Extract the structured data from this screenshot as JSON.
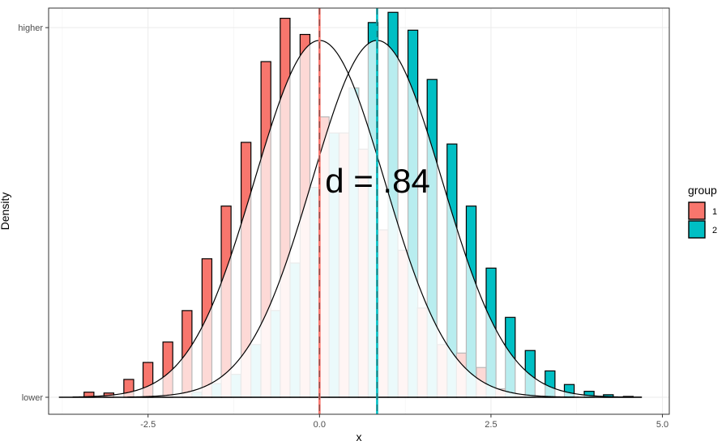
{
  "chart_data": {
    "type": "histogram",
    "xlabel": "x",
    "ylabel": "Density",
    "xlim": [
      -3.95,
      5.1
    ],
    "x_ticks": [
      -2.5,
      0.0,
      2.5,
      5.0
    ],
    "x_tick_labels": [
      "-2.5",
      "0.0",
      "2.5",
      "5.0"
    ],
    "y_tick_labels": [
      "higher",
      "lower"
    ],
    "y_tick_values": [
      0.435,
      0.0
    ],
    "ylim": [
      -0.02,
      0.458
    ],
    "grid": true,
    "legend": {
      "title": "group",
      "position": "right",
      "entries": [
        "1",
        "2"
      ]
    },
    "annotation": "d = .84",
    "colors": {
      "group_1": "#F8766D",
      "group_2": "#00BFC4",
      "group_1_light": "#FCD9D6",
      "group_2_light": "#BFEFF0",
      "overlap": "#C3817D"
    },
    "bin_width": 0.286,
    "series": [
      {
        "name": "1",
        "mean_line": 0.0,
        "bin_centers": [
          -3.29,
          -3.0,
          -2.71,
          -2.43,
          -2.14,
          -1.86,
          -1.57,
          -1.29,
          -1.0,
          -0.71,
          -0.43,
          -0.14,
          0.14,
          0.43,
          0.71,
          1.0,
          1.29,
          1.57,
          1.86,
          2.14,
          2.43,
          2.71,
          3.0
        ],
        "values": [
          0.006,
          0.005,
          0.021,
          0.041,
          0.065,
          0.102,
          0.163,
          0.225,
          0.3,
          0.395,
          0.446,
          0.427,
          0.33,
          0.311,
          0.292,
          0.197,
          0.173,
          0.105,
          0.062,
          0.052,
          0.035,
          0.01,
          0.003
        ]
      },
      {
        "name": "2",
        "mean_line": 0.84,
        "bin_centers": [
          -1.86,
          -1.57,
          -1.29,
          -1.0,
          -0.71,
          -0.43,
          -0.14,
          0.14,
          0.43,
          0.71,
          1.0,
          1.29,
          1.57,
          1.86,
          2.14,
          2.43,
          2.71,
          3.0,
          3.29,
          3.57,
          3.86,
          4.14,
          4.43
        ],
        "values": [
          0.006,
          0.016,
          0.027,
          0.062,
          0.102,
          0.158,
          0.247,
          0.311,
          0.364,
          0.441,
          0.453,
          0.432,
          0.374,
          0.298,
          0.225,
          0.152,
          0.094,
          0.055,
          0.031,
          0.015,
          0.007,
          0.003,
          0.001
        ]
      }
    ]
  }
}
